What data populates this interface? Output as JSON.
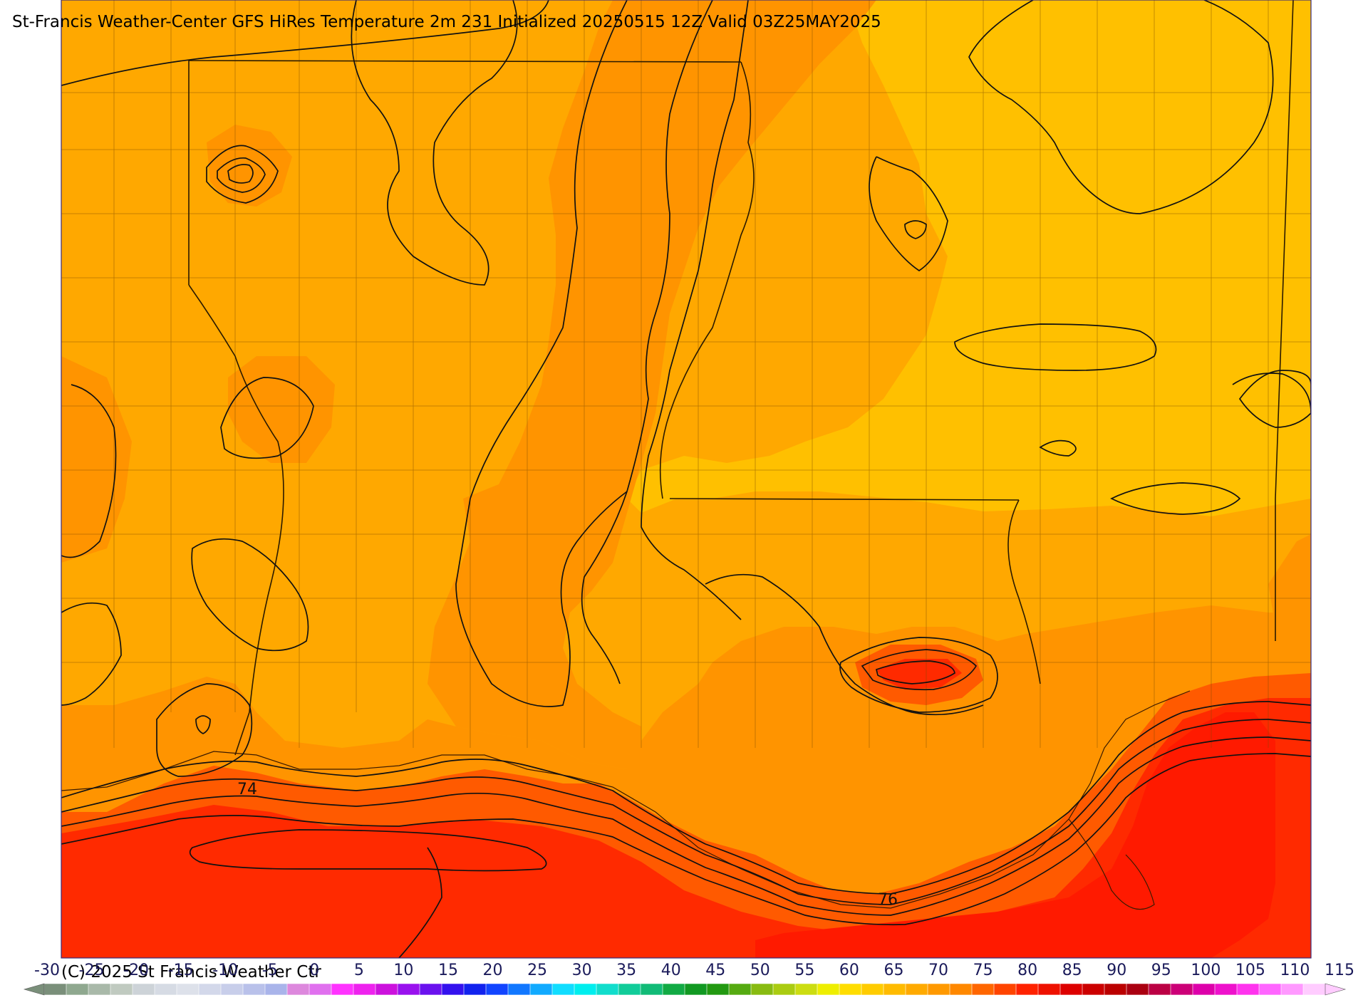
{
  "title": "St-Francis Weather-Center GFS HiRes Temperature 2m  231 Initialized 20250515 12Z Valid 03Z25MAY2025",
  "copyright": "(C) 2025 St Francis Weather Ctr",
  "contour_labels": [
    "74",
    "76"
  ],
  "colorbar": {
    "ticks": [
      "-30",
      "-25",
      "-20",
      "-15",
      "-10",
      "-5",
      "0",
      "5",
      "10",
      "15",
      "20",
      "25",
      "30",
      "35",
      "40",
      "45",
      "50",
      "55",
      "60",
      "65",
      "70",
      "75",
      "80",
      "85",
      "90",
      "95",
      "100",
      "105",
      "110",
      "115"
    ],
    "colors": [
      "#7a8f7a",
      "#8fa88f",
      "#a9b9a9",
      "#c0cac0",
      "#cdd3d8",
      "#d6dbe4",
      "#dde1ea",
      "#d3d8ea",
      "#c8ceea",
      "#b9c1ea",
      "#a9b4ea",
      "#dd88dd",
      "#e070ee",
      "#ff33ff",
      "#ee22ee",
      "#cc11dd",
      "#9911ee",
      "#6a11ee",
      "#3311ee",
      "#1122ee",
      "#1144ff",
      "#1177ff",
      "#11aaff",
      "#11ddff",
      "#00eeee",
      "#11ddcc",
      "#11cc99",
      "#11bb77",
      "#11aa44",
      "#119922",
      "#229911",
      "#55aa11",
      "#88bb11",
      "#aacc11",
      "#ccdd11",
      "#eeee00",
      "#ffdd00",
      "#ffcc00",
      "#ffbb00",
      "#ffaa00",
      "#ff9900",
      "#ff8800",
      "#ff6600",
      "#ff4400",
      "#ff2200",
      "#ee1100",
      "#dd0000",
      "#cc0000",
      "#bb0000",
      "#aa0011",
      "#bb0044",
      "#cc0077",
      "#dd00aa",
      "#ee11cc",
      "#ff33ee",
      "#ff66ff",
      "#ff99ff",
      "#ffccff"
    ]
  }
}
